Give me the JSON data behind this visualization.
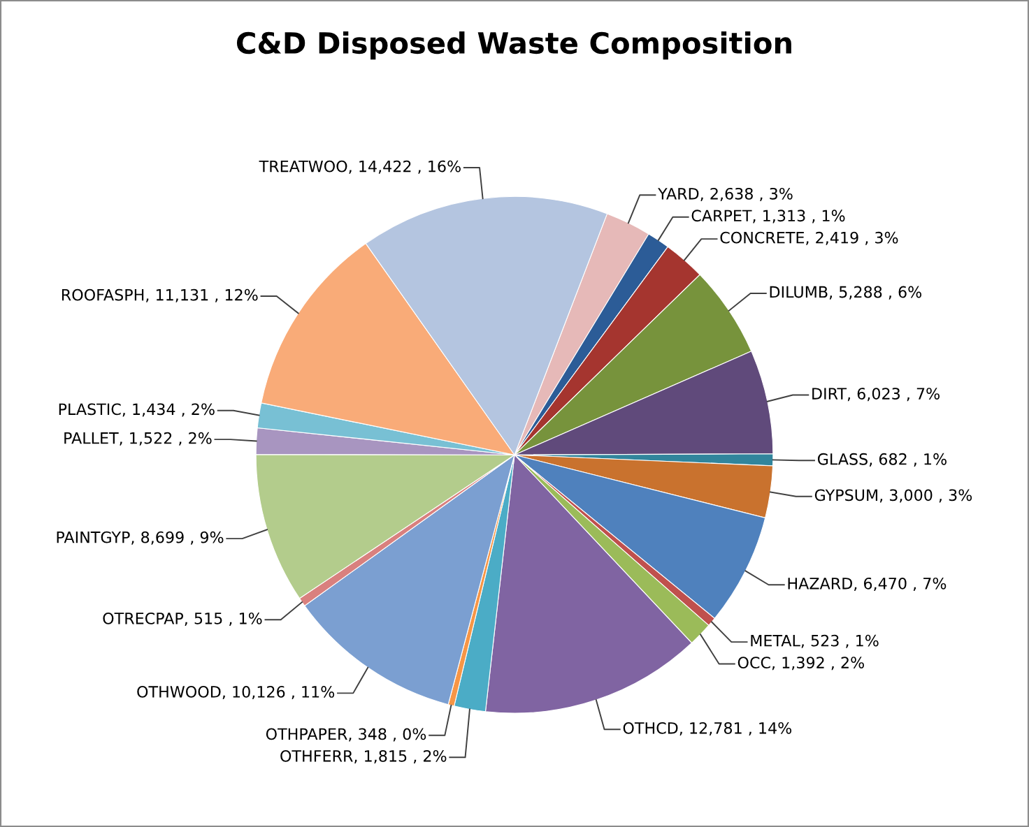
{
  "chart_data": {
    "type": "pie",
    "title": "C&D Disposed Waste Composition",
    "categories": [
      "YARD",
      "CARPET",
      "CONCRETE",
      "DILUMB",
      "DIRT",
      "GLASS",
      "GYPSUM",
      "HAZARD",
      "METAL",
      "OCC",
      "OTHCD",
      "OTHFERR",
      "OTHPAPER",
      "OTHWOOD",
      "OTRECPAP",
      "PAINTGYP",
      "PALLET",
      "PLASTIC",
      "ROOFASPH",
      "TREATWOO"
    ],
    "values": [
      2638,
      1313,
      2419,
      5288,
      6023,
      682,
      3000,
      6470,
      523,
      1392,
      12781,
      1815,
      348,
      10126,
      515,
      8699,
      1522,
      1434,
      11131,
      14422
    ],
    "value_labels": [
      "2,638 , 3%",
      "1,313 , 1%",
      "2,419 , 3%",
      "5,288 , 6%",
      "6,023 , 7%",
      "682 , 1%",
      "3,000 , 3%",
      "6,470 , 7%",
      "523 , 1%",
      "1,392 , 2%",
      "12,781 , 14%",
      "1,815 , 2%",
      "348 , 0%",
      "10,126 , 11%",
      "515 , 1%",
      "8,699 , 9%",
      "1,522 , 2%",
      "1,434 , 2%",
      "11,131 , 12%",
      "14,422 , 16%"
    ],
    "colors": [
      "#e6b9b8",
      "#2c5c97",
      "#a5352f",
      "#77933c",
      "#604a7b",
      "#31859c",
      "#c9722e",
      "#4f81bd",
      "#c0504d",
      "#9bbb59",
      "#8064a2",
      "#4bacc6",
      "#f79646",
      "#7b9fd1",
      "#d9807e",
      "#b3cc8c",
      "#a895c0",
      "#78c0d4",
      "#f9ab78",
      "#b4c5e0"
    ],
    "legend": false
  }
}
